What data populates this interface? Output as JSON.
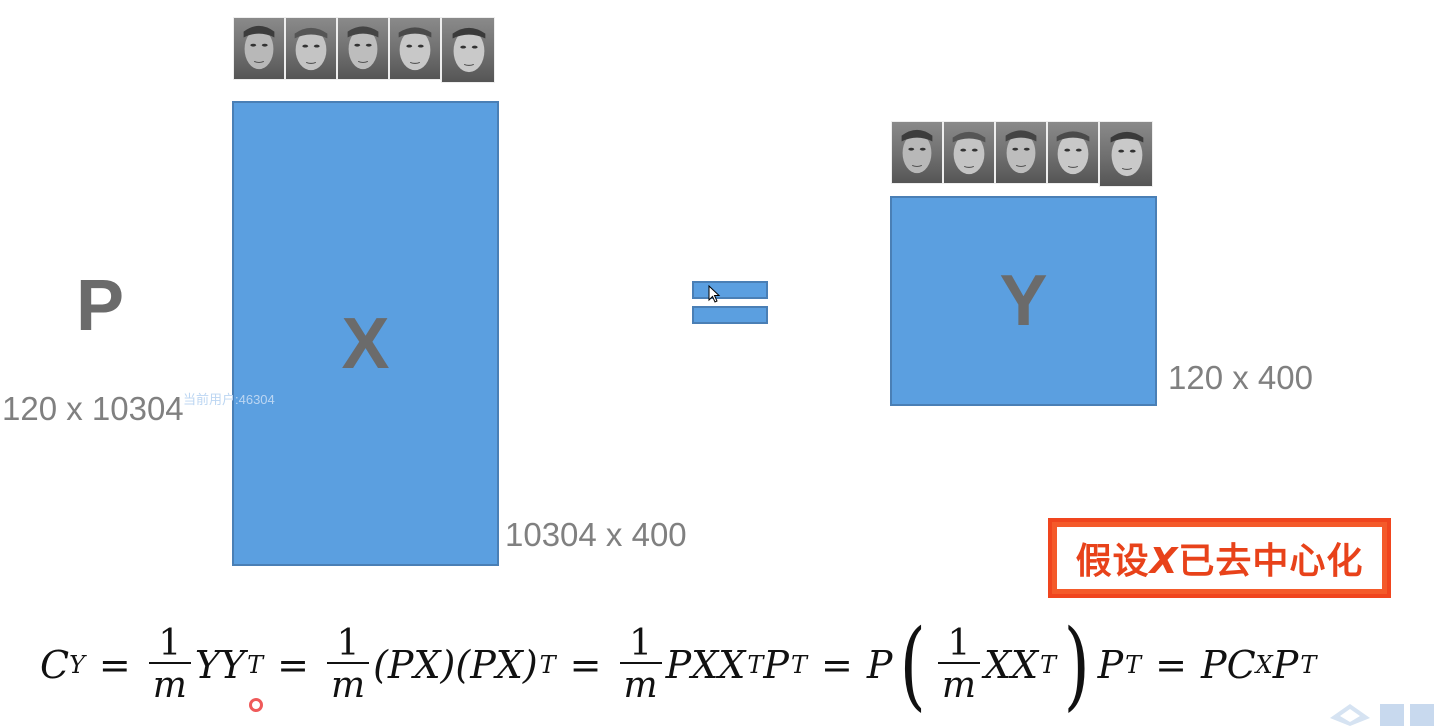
{
  "left_factor": {
    "label": "P",
    "dims": "120 x 10304"
  },
  "matrix_x": {
    "label": "X",
    "dims": "10304 x 400"
  },
  "matrix_y": {
    "label": "Y",
    "dims": "120 x 400"
  },
  "watermark": "当前用户:46304",
  "callout": {
    "prefix": "假设",
    "var": "X",
    "suffix": "已去中心化"
  },
  "colors": {
    "matrix_fill": "#5b9fe0",
    "matrix_border": "#4a7fb5",
    "callout_red": "#f0451e",
    "text_gray": "#6b6b6b"
  },
  "formula": {
    "lhs_C": "C",
    "lhs_sub": "Y",
    "one": "1",
    "m": "m",
    "Y": "Y",
    "T": "T",
    "PX": "(PX)",
    "P": "P",
    "X": "X",
    "CX_sub": "X"
  },
  "icons": [
    "face-thumbnail",
    "mouse-cursor-icon",
    "logo-icon"
  ]
}
